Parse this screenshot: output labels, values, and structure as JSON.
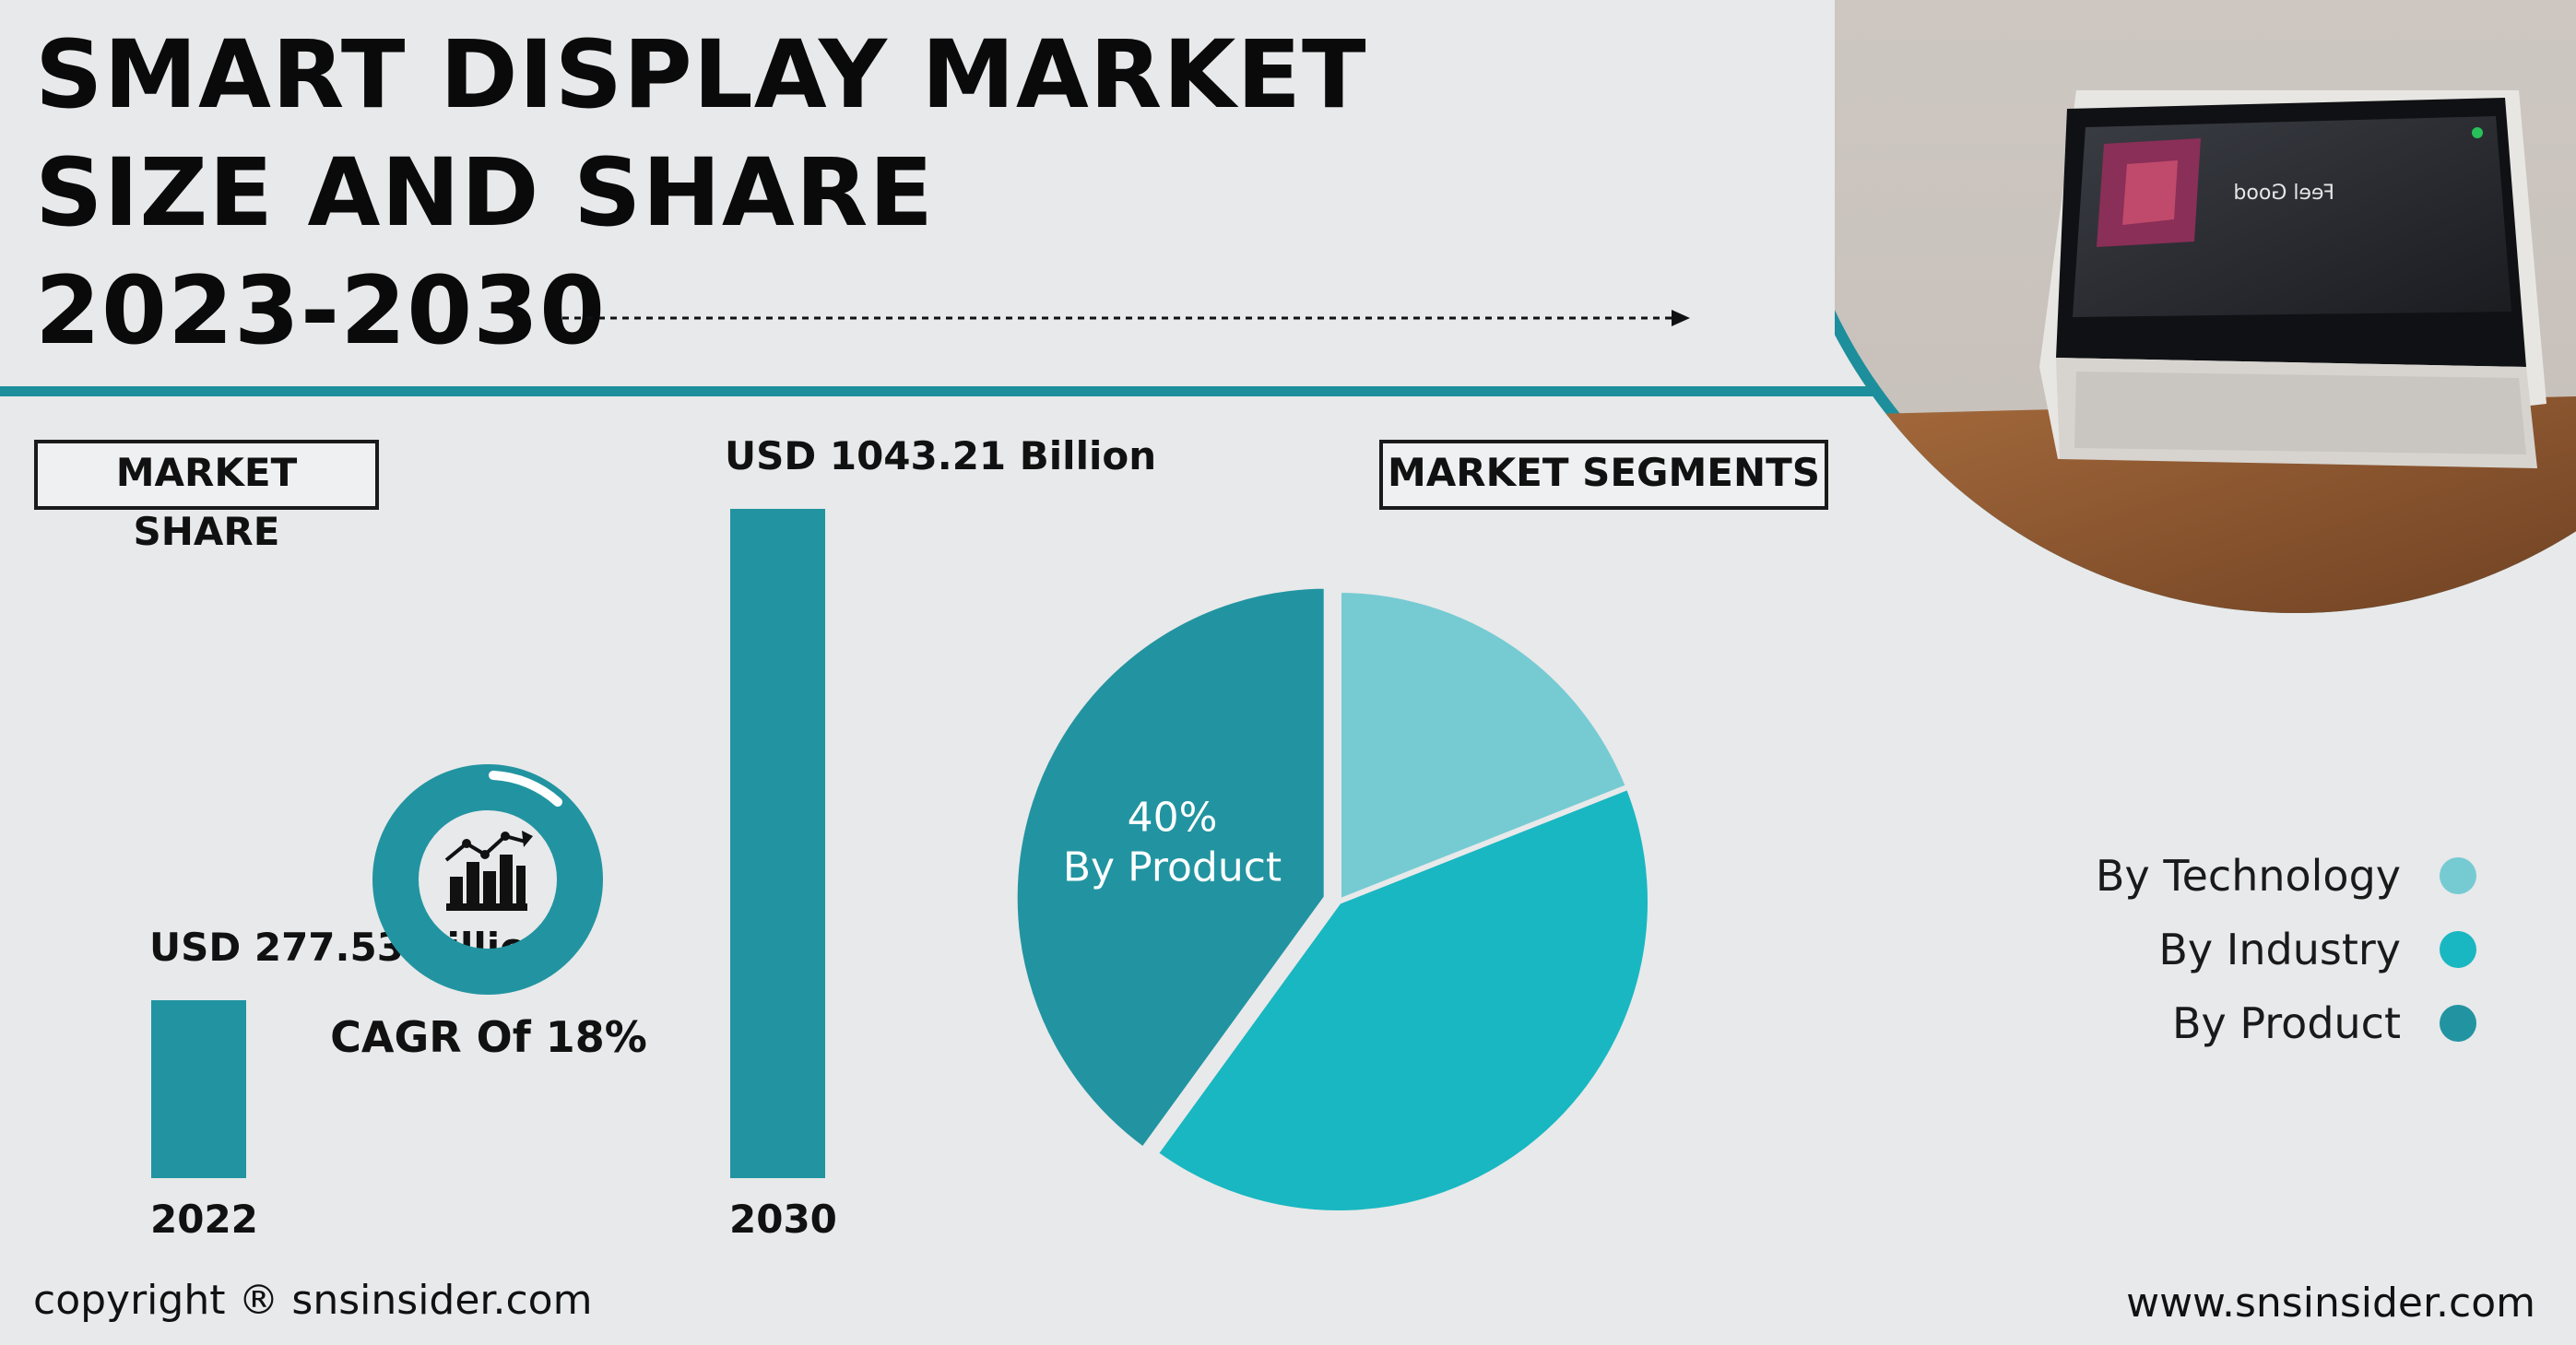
{
  "header": {
    "title_lines": [
      "SMART DISPLAY MARKET",
      "SIZE AND SHARE",
      "2023-2030"
    ]
  },
  "market_share_label": "MARKET SHARE",
  "market_segments_label": "MARKET SEGMENTS",
  "cagr_label": "CAGR Of 18%",
  "footer": {
    "copyright": "copyright ® snsinsider.com",
    "website": "www.snsinsider.com"
  },
  "colors": {
    "accent": "#1d8e9b",
    "technology": "#76cbd3",
    "industry": "#19b7c1",
    "product": "#2294a1"
  },
  "icons": [
    "chart-icon",
    "arrow-icon",
    "smart-display-photo"
  ],
  "chart_data": [
    {
      "type": "bar",
      "categories": [
        "2022",
        "2030"
      ],
      "values": [
        277.53,
        1043.21
      ],
      "data_labels": [
        "USD 277.53 Billion",
        "USD 1043.21 Billion"
      ],
      "title": "",
      "xlabel": "",
      "ylabel": "",
      "ylim": [
        0,
        1043.21
      ]
    },
    {
      "type": "pie",
      "categories": [
        "By Technology",
        "By Industry",
        "By Product"
      ],
      "values": [
        19,
        41,
        40
      ],
      "data_labels": [
        "",
        "",
        "40%\nBy Product"
      ],
      "pct_label": "40%",
      "pct_category": "By Product",
      "legend": "right"
    }
  ]
}
